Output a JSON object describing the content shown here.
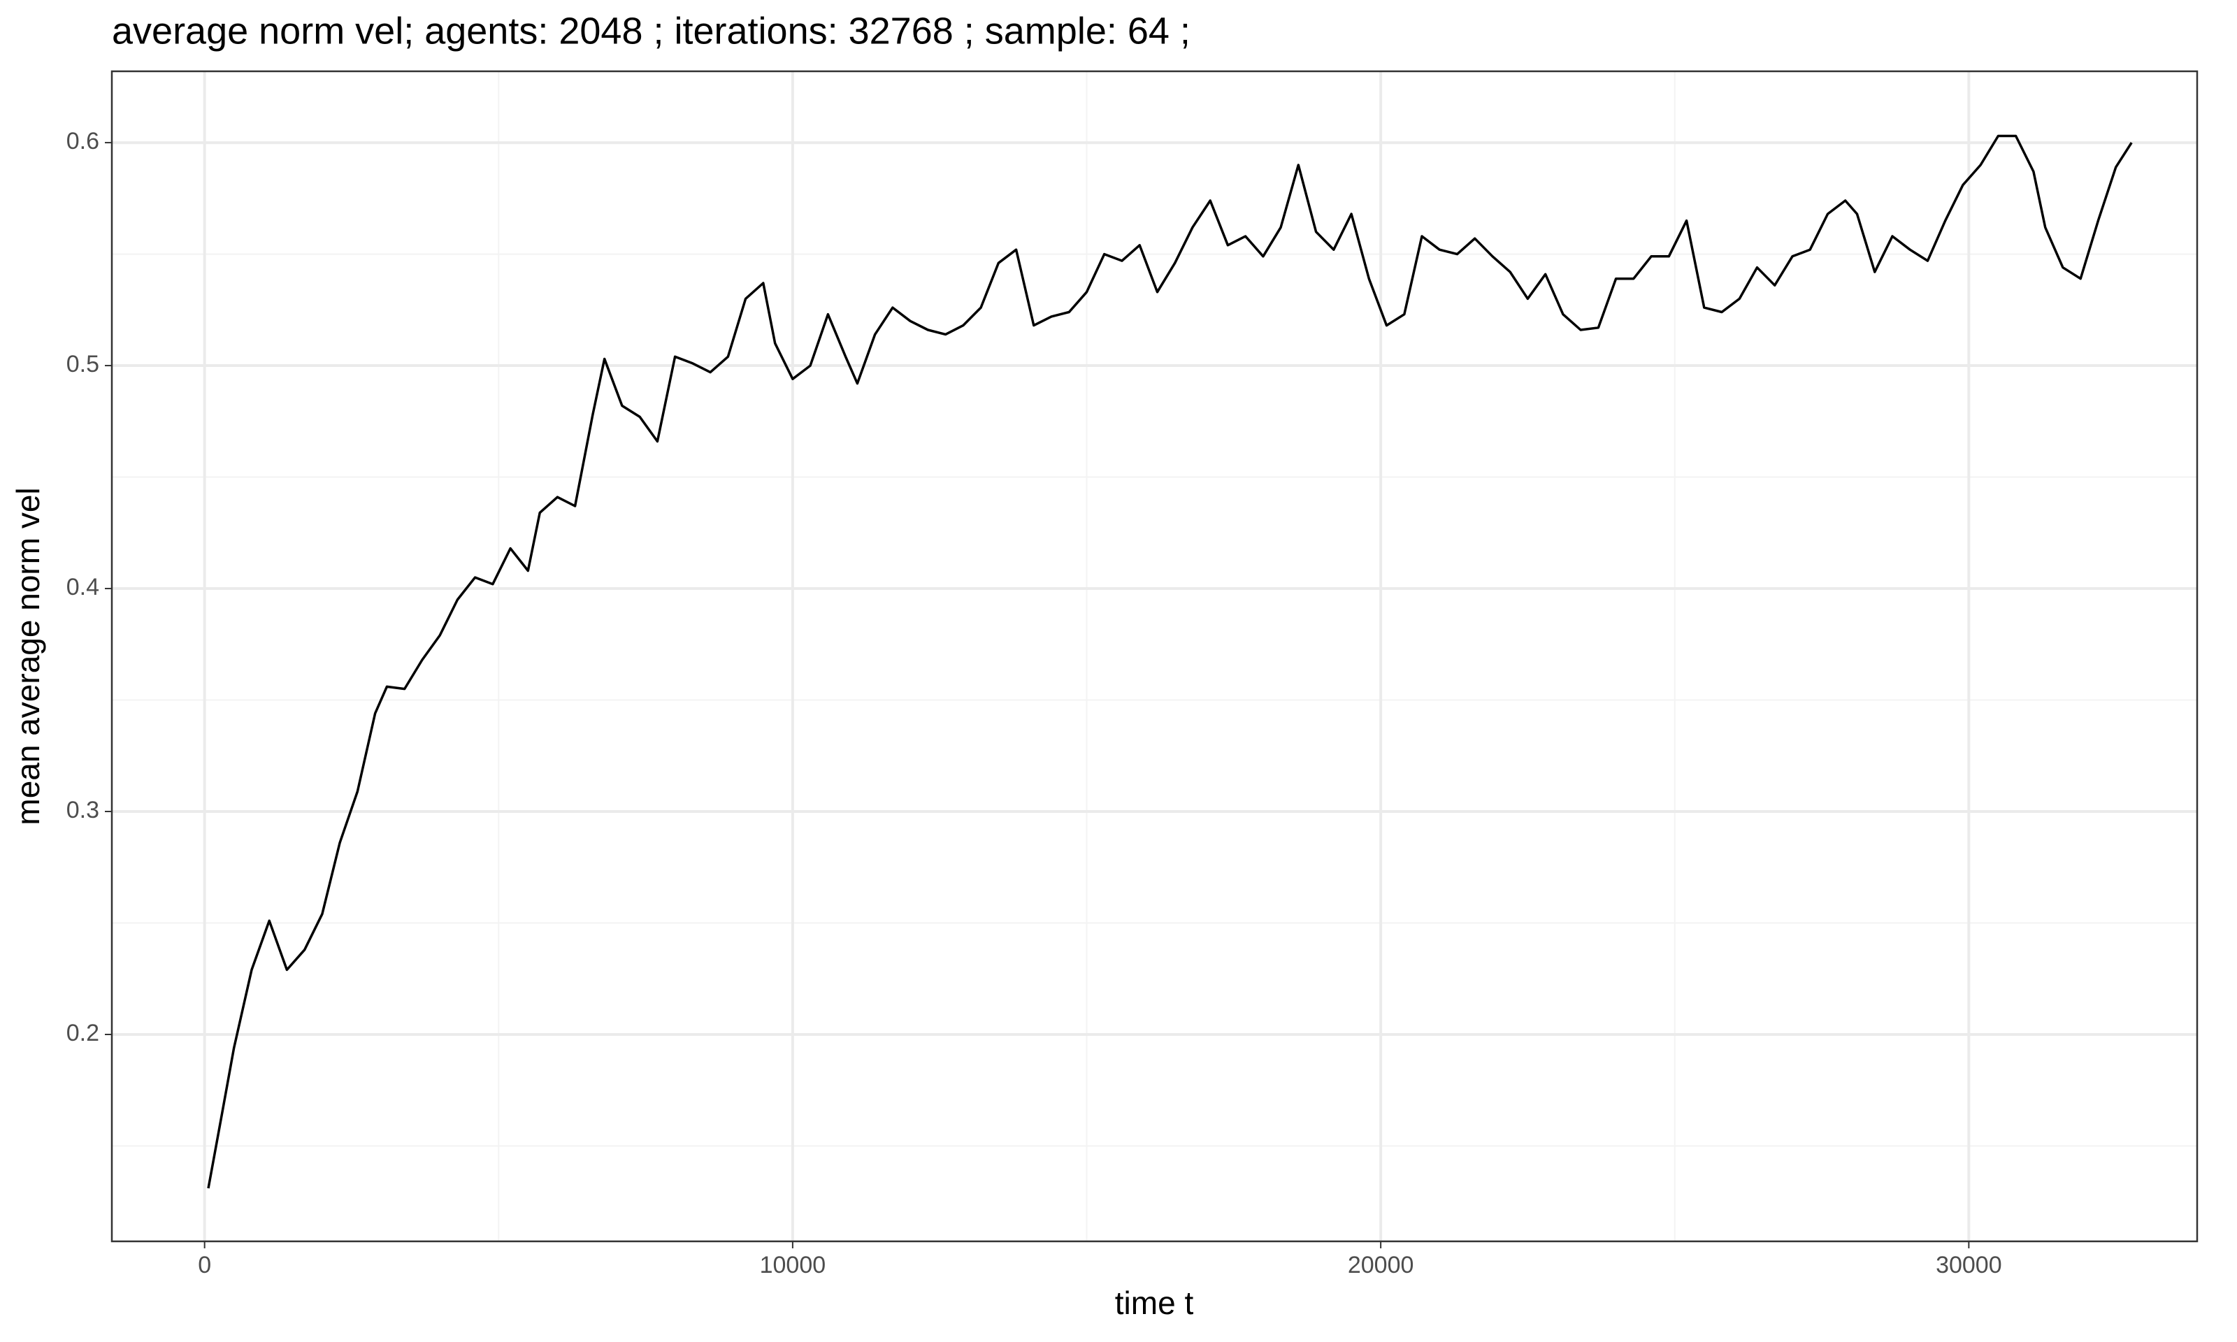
{
  "chart_data": {
    "type": "line",
    "title": "average norm vel; agents: 2048 ; iterations: 32768 ; sample: 64 ;",
    "xlabel": "time t",
    "ylabel": "mean average norm vel",
    "x": [
      64,
      300,
      500,
      800,
      1100,
      1400,
      1700,
      2000,
      2300,
      2600,
      2900,
      3100,
      3400,
      3700,
      4000,
      4300,
      4600,
      4900,
      5200,
      5500,
      5700,
      6000,
      6300,
      6600,
      6800,
      7100,
      7400,
      7700,
      8000,
      8300,
      8600,
      8900,
      9200,
      9500,
      9700,
      10000,
      10300,
      10600,
      10900,
      11100,
      11400,
      11700,
      12000,
      12300,
      12600,
      12900,
      13200,
      13500,
      13800,
      14100,
      14400,
      14700,
      15000,
      15300,
      15600,
      15900,
      16200,
      16500,
      16800,
      17100,
      17400,
      17700,
      18000,
      18300,
      18600,
      18900,
      19200,
      19500,
      19800,
      20100,
      20400,
      20700,
      21000,
      21300,
      21600,
      21900,
      22200,
      22500,
      22800,
      23100,
      23400,
      23700,
      24000,
      24300,
      24600,
      24900,
      25200,
      25500,
      25800,
      26100,
      26400,
      26700,
      27000,
      27300,
      27600,
      27900,
      28100,
      28400,
      28700,
      29000,
      29300,
      29600,
      29900,
      30200,
      30500,
      30800,
      31100,
      31300,
      31600,
      31900,
      32200,
      32500,
      32768
    ],
    "values": [
      0.131,
      0.165,
      0.194,
      0.229,
      0.251,
      0.229,
      0.238,
      0.254,
      0.286,
      0.309,
      0.344,
      0.356,
      0.355,
      0.368,
      0.379,
      0.395,
      0.405,
      0.402,
      0.418,
      0.408,
      0.434,
      0.441,
      0.437,
      0.478,
      0.503,
      0.482,
      0.477,
      0.466,
      0.504,
      0.501,
      0.497,
      0.504,
      0.53,
      0.537,
      0.51,
      0.494,
      0.5,
      0.523,
      0.504,
      0.492,
      0.514,
      0.526,
      0.52,
      0.516,
      0.514,
      0.518,
      0.526,
      0.546,
      0.552,
      0.518,
      0.522,
      0.524,
      0.533,
      0.55,
      0.547,
      0.554,
      0.533,
      0.546,
      0.562,
      0.574,
      0.554,
      0.558,
      0.549,
      0.562,
      0.59,
      0.56,
      0.552,
      0.568,
      0.539,
      0.518,
      0.523,
      0.558,
      0.552,
      0.55,
      0.557,
      0.549,
      0.542,
      0.53,
      0.541,
      0.523,
      0.516,
      0.517,
      0.539,
      0.539,
      0.549,
      0.549,
      0.565,
      0.526,
      0.524,
      0.53,
      0.544,
      0.536,
      0.549,
      0.552,
      0.568,
      0.574,
      0.568,
      0.542,
      0.558,
      0.552,
      0.547,
      0.565,
      0.581,
      0.59,
      0.603,
      0.603,
      0.587,
      0.562,
      0.544,
      0.539,
      0.565,
      0.589,
      0.6
    ],
    "color": "#000000",
    "xlim": [
      -1577,
      33883
    ],
    "ylim": [
      0.1072,
      0.632
    ],
    "xticks": [
      0,
      10000,
      20000,
      30000
    ],
    "yticks": [
      0.2,
      0.3,
      0.4,
      0.5,
      0.6
    ],
    "minor_xticks": [
      5000,
      15000,
      25000
    ],
    "minor_yticks": [
      0.15,
      0.25,
      0.35,
      0.45,
      0.55
    ],
    "grid": true
  }
}
